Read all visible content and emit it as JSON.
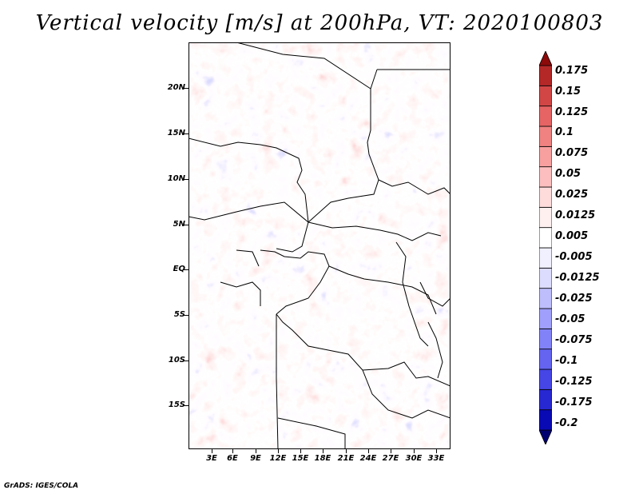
{
  "title": "Vertical velocity [m/s] at 200hPa, VT: 2020100803",
  "y_axis": {
    "labels": [
      "20N",
      "15N",
      "10N",
      "5N",
      "EQ",
      "5S",
      "10S",
      "15S"
    ]
  },
  "x_axis": {
    "labels": [
      "3E",
      "6E",
      "9E",
      "12E",
      "15E",
      "18E",
      "21E",
      "24E",
      "27E",
      "30E",
      "33E"
    ]
  },
  "colorbar": {
    "labels": [
      "0.175",
      "0.15",
      "0.125",
      "0.1",
      "0.075",
      "0.05",
      "0.025",
      "0.0125",
      "0.005",
      "-0.005",
      "-0.0125",
      "-0.025",
      "-0.05",
      "-0.075",
      "-0.1",
      "-0.125",
      "-0.175",
      "-0.2"
    ],
    "colors": [
      "#000070",
      "#0a0ab4",
      "#2828d2",
      "#4646e6",
      "#6464f0",
      "#8282f8",
      "#a0a0fc",
      "#bebefd",
      "#dcdcfe",
      "#f0f0ff",
      "#ffffff",
      "#fff0f0",
      "#fedcdc",
      "#fcbebe",
      "#f8a0a0",
      "#f08282",
      "#e66464",
      "#d24646",
      "#b42828",
      "#8c0a0a"
    ]
  },
  "footer": "GrADS: IGES/COLA"
}
